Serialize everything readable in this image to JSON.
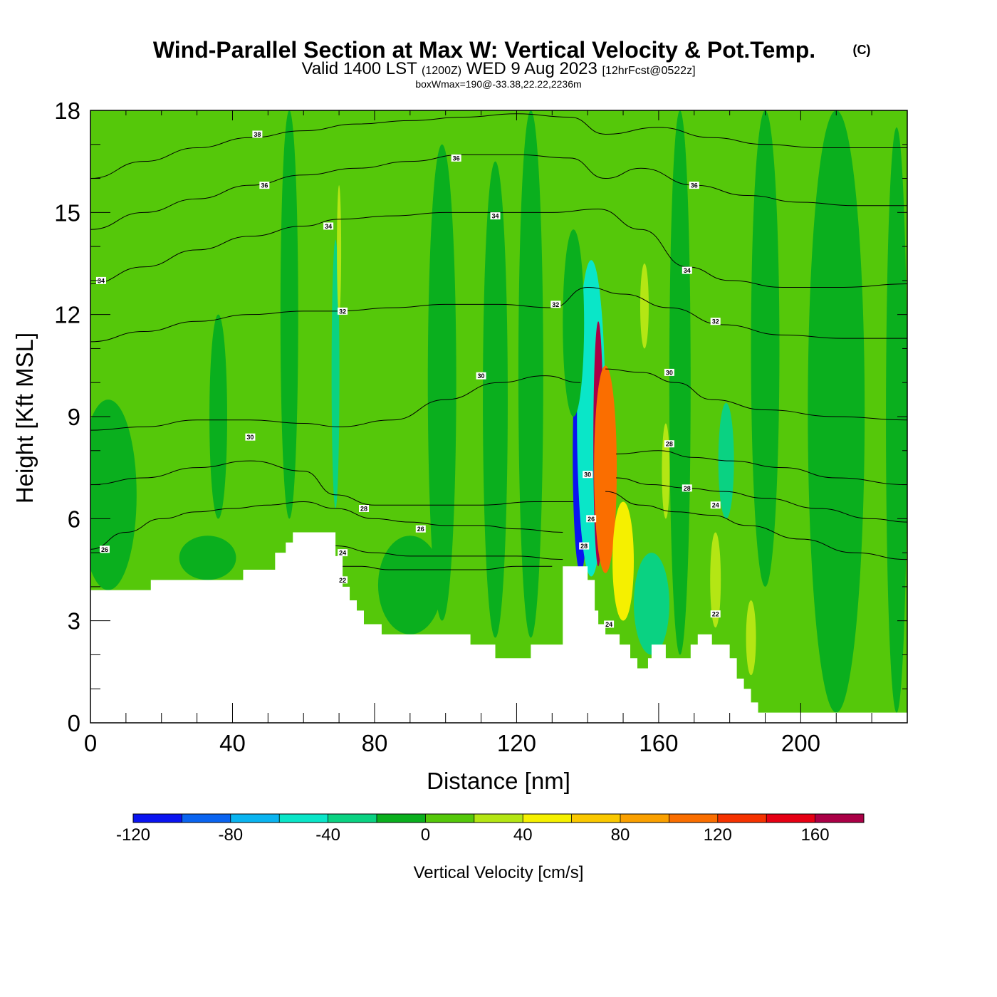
{
  "header": {
    "title": "Wind-Parallel Section at Max W: Vertical Velocity & Pot.Temp.",
    "copyright": "(C)",
    "valid_prefix": "Valid 1400 LST",
    "valid_zulu": "(1200Z)",
    "valid_date": "WED 9 Aug 2023",
    "forecast": "[12hrFcst@0522z]",
    "boxwmax": "boxWmax=190@-33.38,22.22,2236m"
  },
  "colors": {
    "background_field": "#55c80a",
    "terrain": "#ffffff",
    "contour": "#000000",
    "frame": "#000000"
  },
  "chart_data": {
    "type": "heatmap",
    "title": "Wind-Parallel Section at Max W: Vertical Velocity & Pot.Temp.",
    "xlabel": "Distance [nm]",
    "ylabel": "Height [Kft MSL]",
    "xlim": [
      0,
      230
    ],
    "ylim": [
      0,
      18
    ],
    "x_ticks": [
      0,
      40,
      80,
      120,
      160,
      200
    ],
    "y_ticks": [
      0,
      3,
      6,
      9,
      12,
      15,
      18
    ],
    "colorbar": {
      "label": "Vertical Velocity [cm/s]",
      "bins": [
        -120,
        -100,
        -80,
        -60,
        -40,
        -20,
        0,
        20,
        40,
        60,
        80,
        100,
        120,
        140,
        160,
        180
      ],
      "tick_labels": [
        "-120",
        "-80",
        "-40",
        "0",
        "40",
        "80",
        "120",
        "160"
      ],
      "tick_values": [
        -120,
        -80,
        -40,
        0,
        40,
        80,
        120,
        160
      ],
      "colors": [
        "#0a14f0",
        "#0a64f0",
        "#0ab4f0",
        "#0ae6c8",
        "#0ad282",
        "#0aaf1e",
        "#55c80a",
        "#b4e614",
        "#f5f000",
        "#fac800",
        "#faa000",
        "#fa6e00",
        "#f53200",
        "#e60014",
        "#aa0046"
      ]
    },
    "terrain_profile": {
      "x": [
        0,
        17,
        17,
        43,
        43,
        52,
        52,
        55,
        55,
        57,
        57,
        69,
        69,
        71,
        71,
        73,
        73,
        75,
        75,
        77,
        77,
        82,
        82,
        107,
        107,
        114,
        114,
        124,
        124,
        133,
        133,
        138,
        138,
        139,
        139,
        140,
        140,
        142,
        142,
        143,
        143,
        145,
        145,
        149,
        149,
        152,
        152,
        154,
        154,
        157,
        157,
        158,
        158,
        160,
        160,
        162,
        162,
        165,
        165,
        169,
        169,
        171,
        171,
        175,
        175,
        180,
        180,
        182,
        182,
        184,
        184,
        186,
        186,
        188,
        188,
        194,
        194,
        199,
        199,
        230
      ],
      "y": [
        3.9,
        3.9,
        4.2,
        4.2,
        4.5,
        4.5,
        5.0,
        5.0,
        5.3,
        5.3,
        5.6,
        5.6,
        4.9,
        4.9,
        4.0,
        4.0,
        3.6,
        3.6,
        3.3,
        3.3,
        2.9,
        2.9,
        2.6,
        2.6,
        2.3,
        2.3,
        1.9,
        1.9,
        2.3,
        2.3,
        4.6,
        4.6,
        4.6,
        4.6,
        4.6,
        4.6,
        4.2,
        4.2,
        3.3,
        3.3,
        2.9,
        2.9,
        2.6,
        2.6,
        2.3,
        2.3,
        1.9,
        1.9,
        1.6,
        1.6,
        1.9,
        1.9,
        2.3,
        2.3,
        2.3,
        2.3,
        1.9,
        1.9,
        1.9,
        1.9,
        2.3,
        2.3,
        2.6,
        2.6,
        2.3,
        2.3,
        1.9,
        1.9,
        1.3,
        1.3,
        1.0,
        1.0,
        0.6,
        0.6,
        0.3,
        0.3,
        0.3,
        0.3,
        0.3,
        0.3
      ]
    },
    "velocity_features": [
      {
        "x": 138,
        "y_bottom": 4.4,
        "y_top": 11.3,
        "half_width": 2.2,
        "value": -110
      },
      {
        "x": 141,
        "y_bottom": 4.3,
        "y_top": 13.6,
        "half_width": 4.0,
        "value": -50
      },
      {
        "x": 143,
        "y_bottom": 4.6,
        "y_top": 11.8,
        "half_width": 1.4,
        "value": 170
      },
      {
        "x": 145,
        "y_bottom": 4.4,
        "y_top": 10.5,
        "half_width": 3.2,
        "value": 100
      },
      {
        "x": 150,
        "y_bottom": 3.0,
        "y_top": 6.5,
        "half_width": 3.0,
        "value": 45
      },
      {
        "x": 156,
        "y_bottom": 11.0,
        "y_top": 13.5,
        "half_width": 1.2,
        "value": 30
      },
      {
        "x": 162,
        "y_bottom": 6.0,
        "y_top": 8.8,
        "half_width": 1.1,
        "value": 30
      },
      {
        "x": 176,
        "y_bottom": 2.8,
        "y_top": 5.6,
        "half_width": 1.5,
        "value": 35
      },
      {
        "x": 186,
        "y_bottom": 1.4,
        "y_top": 3.6,
        "half_width": 1.4,
        "value": 35
      },
      {
        "x": 69,
        "y_bottom": 6.3,
        "y_top": 14.2,
        "half_width": 1.1,
        "value": -40
      },
      {
        "x": 70,
        "y_bottom": 12.0,
        "y_top": 15.8,
        "half_width": 0.6,
        "value": 25
      },
      {
        "x": 158,
        "y_bottom": 2.0,
        "y_top": 5.0,
        "half_width": 5.0,
        "value": -30
      },
      {
        "x": 179,
        "y_bottom": 6.0,
        "y_top": 9.4,
        "half_width": 2.2,
        "value": -30
      },
      {
        "x": 136,
        "y_bottom": 9.0,
        "y_top": 14.5,
        "half_width": 3.0,
        "value": -10
      },
      {
        "x": 99,
        "y_bottom": 3.0,
        "y_top": 17.0,
        "half_width": 4.0,
        "value": -10
      },
      {
        "x": 114,
        "y_bottom": 2.5,
        "y_top": 16.5,
        "half_width": 3.5,
        "value": -10
      },
      {
        "x": 124,
        "y_bottom": 2.5,
        "y_top": 18.0,
        "half_width": 3.5,
        "value": -10
      },
      {
        "x": 166,
        "y_bottom": 2.0,
        "y_top": 18.0,
        "half_width": 3.0,
        "value": -10
      },
      {
        "x": 190,
        "y_bottom": 4.0,
        "y_top": 18.0,
        "half_width": 4.0,
        "value": -10
      },
      {
        "x": 210,
        "y_bottom": 0.3,
        "y_top": 18.0,
        "half_width": 8.0,
        "value": -10
      },
      {
        "x": 227,
        "y_bottom": 0.3,
        "y_top": 17.5,
        "half_width": 3.0,
        "value": -10
      },
      {
        "x": 56,
        "y_bottom": 6.0,
        "y_top": 18.0,
        "half_width": 2.5,
        "value": -10
      },
      {
        "x": 36,
        "y_bottom": 6.0,
        "y_top": 12.0,
        "half_width": 2.5,
        "value": -10
      },
      {
        "x": 5,
        "y_bottom": 3.9,
        "y_top": 9.5,
        "half_width": 8.0,
        "value": -10
      },
      {
        "x": 33,
        "y_bottom": 4.2,
        "y_top": 5.5,
        "half_width": 8.0,
        "value": -10
      },
      {
        "x": 90,
        "y_bottom": 2.6,
        "y_top": 5.5,
        "half_width": 9.0,
        "value": -10
      }
    ],
    "theta_contours": [
      {
        "level": 22,
        "x": [
          69,
          76,
          84,
          92,
          100,
          110,
          120,
          130
        ],
        "y": [
          4.6,
          4.6,
          4.5,
          4.5,
          4.5,
          4.5,
          4.6,
          4.6
        ]
      },
      {
        "level": 24,
        "x": [
          69,
          80,
          90,
          100,
          110,
          120,
          133
        ],
        "y": [
          5.2,
          5.0,
          4.9,
          4.9,
          4.9,
          4.9,
          4.8
        ]
      },
      {
        "level": 24,
        "x": [
          145,
          155,
          165,
          175,
          185,
          200,
          215,
          230
        ],
        "y": [
          6.8,
          6.4,
          6.2,
          6.1,
          5.8,
          5.4,
          5.0,
          4.8
        ]
      },
      {
        "level": 26,
        "x": [
          0,
          10,
          20,
          30,
          40,
          50,
          60,
          69,
          80,
          90,
          100,
          110,
          120,
          133
        ],
        "y": [
          5.1,
          5.6,
          6.0,
          6.2,
          6.3,
          6.4,
          6.5,
          6.3,
          6.0,
          5.9,
          5.8,
          5.8,
          5.7,
          5.6
        ]
      },
      {
        "level": 26,
        "x": [
          148,
          158,
          168,
          178,
          190,
          205,
          220,
          230
        ],
        "y": [
          7.2,
          7.0,
          6.9,
          6.8,
          6.6,
          6.3,
          6.0,
          5.9
        ]
      },
      {
        "level": 28,
        "x": [
          0,
          15,
          30,
          45,
          60,
          69,
          80,
          95,
          110,
          125,
          136
        ],
        "y": [
          7.0,
          7.2,
          7.5,
          7.7,
          7.4,
          6.7,
          6.4,
          6.4,
          6.4,
          6.5,
          6.5
        ]
      },
      {
        "level": 28,
        "x": [
          148,
          160,
          170,
          180,
          195,
          210,
          230
        ],
        "y": [
          7.9,
          8.0,
          7.8,
          7.7,
          7.5,
          7.2,
          7.0
        ]
      },
      {
        "level": 30,
        "x": [
          0,
          15,
          30,
          45,
          60,
          70,
          85,
          100,
          115,
          128,
          138
        ],
        "y": [
          8.6,
          8.7,
          8.9,
          8.9,
          8.8,
          8.7,
          8.9,
          9.5,
          10.0,
          10.2,
          10.0
        ]
      },
      {
        "level": 30,
        "x": [
          145,
          155,
          165,
          175,
          190,
          210,
          230
        ],
        "y": [
          10.4,
          10.3,
          10.0,
          9.5,
          9.2,
          9.0,
          8.9
        ]
      },
      {
        "level": 32,
        "x": [
          0,
          15,
          30,
          45,
          60,
          70,
          85,
          100,
          115,
          130,
          140,
          150,
          163,
          178,
          195,
          212,
          230
        ],
        "y": [
          11.2,
          11.5,
          11.8,
          12.0,
          12.1,
          12.1,
          12.2,
          12.3,
          12.3,
          12.2,
          12.8,
          12.6,
          12.2,
          11.7,
          11.4,
          11.3,
          11.3
        ]
      },
      {
        "level": 34,
        "x": [
          0,
          15,
          30,
          45,
          60,
          70,
          85,
          100,
          115,
          130,
          143,
          155,
          168,
          180,
          195,
          212,
          230
        ],
        "y": [
          12.9,
          13.4,
          13.9,
          14.3,
          14.6,
          14.8,
          14.9,
          15.0,
          15.0,
          15.0,
          15.1,
          14.5,
          13.4,
          13.0,
          12.8,
          12.8,
          12.9
        ]
      },
      {
        "level": 36,
        "x": [
          0,
          15,
          30,
          45,
          60,
          75,
          90,
          105,
          120,
          135,
          145,
          155,
          170,
          185,
          200,
          215,
          230
        ],
        "y": [
          14.5,
          15.0,
          15.4,
          15.8,
          16.1,
          16.3,
          16.5,
          16.7,
          16.7,
          16.6,
          16.0,
          16.3,
          15.8,
          15.5,
          15.3,
          15.2,
          15.2
        ]
      },
      {
        "level": 38,
        "x": [
          0,
          15,
          30,
          45,
          60,
          75,
          90,
          105,
          120,
          135,
          145,
          160,
          175,
          190,
          205,
          220,
          230
        ],
        "y": [
          16.0,
          16.5,
          16.9,
          17.2,
          17.4,
          17.6,
          17.7,
          17.8,
          17.9,
          17.8,
          17.3,
          17.5,
          17.2,
          17.0,
          16.9,
          16.9,
          16.9
        ]
      }
    ],
    "contour_labels": [
      {
        "text": "38",
        "x": 47,
        "y": 17.3
      },
      {
        "text": "36",
        "x": 103,
        "y": 16.6
      },
      {
        "text": "36",
        "x": 170,
        "y": 15.8
      },
      {
        "text": "36",
        "x": 49,
        "y": 15.8
      },
      {
        "text": "34",
        "x": 67,
        "y": 14.6
      },
      {
        "text": "34",
        "x": 114,
        "y": 14.9
      },
      {
        "text": "34",
        "x": 3,
        "y": 13.0
      },
      {
        "text": "34",
        "x": 168,
        "y": 13.3
      },
      {
        "text": "32",
        "x": 131,
        "y": 12.3
      },
      {
        "text": "32",
        "x": 71,
        "y": 12.1
      },
      {
        "text": "32",
        "x": 176,
        "y": 11.8
      },
      {
        "text": "30",
        "x": 110,
        "y": 10.2
      },
      {
        "text": "30",
        "x": 163,
        "y": 10.3
      },
      {
        "text": "30",
        "x": 45,
        "y": 8.4
      },
      {
        "text": "28",
        "x": 163,
        "y": 8.2
      },
      {
        "text": "30",
        "x": 140,
        "y": 7.3
      },
      {
        "text": "28",
        "x": 77,
        "y": 6.3
      },
      {
        "text": "28",
        "x": 168,
        "y": 6.9
      },
      {
        "text": "26",
        "x": 141,
        "y": 6.0
      },
      {
        "text": "24",
        "x": 176,
        "y": 6.4
      },
      {
        "text": "26",
        "x": 93,
        "y": 5.7
      },
      {
        "text": "26",
        "x": 4,
        "y": 5.1
      },
      {
        "text": "24",
        "x": 71,
        "y": 5.0
      },
      {
        "text": "28",
        "x": 139,
        "y": 5.2
      },
      {
        "text": "22",
        "x": 71,
        "y": 4.2
      },
      {
        "text": "22",
        "x": 176,
        "y": 3.2
      },
      {
        "text": "24",
        "x": 146,
        "y": 2.9
      }
    ]
  }
}
